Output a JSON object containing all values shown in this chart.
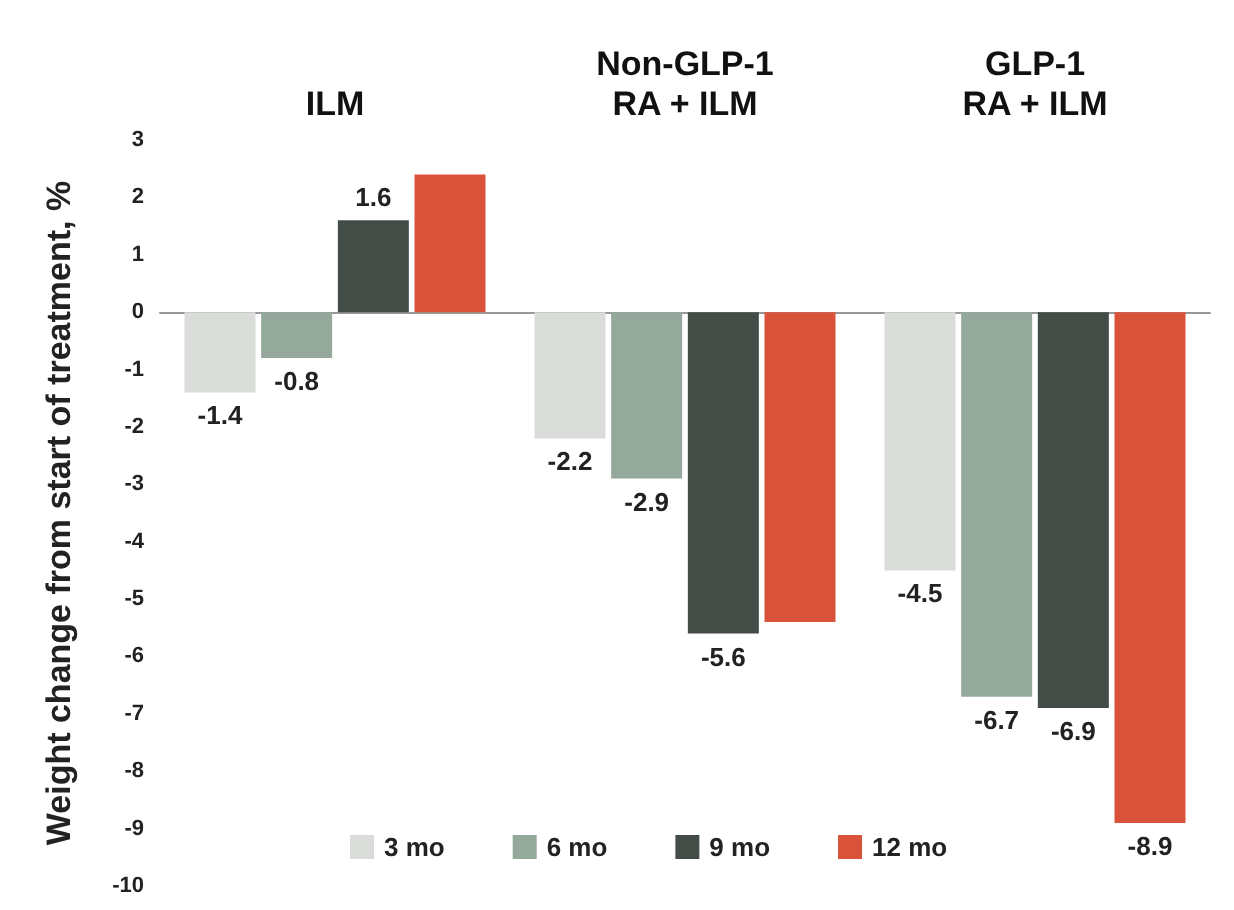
{
  "chart_data": {
    "type": "bar",
    "ylabel": "Weight change from start of treatment, %",
    "categories": [
      "ILM",
      "Non-GLP-1\nRA + ILM",
      "GLP-1\nRA + ILM"
    ],
    "series": [
      {
        "name": "3 mo",
        "color": "#d9dcd9",
        "values": [
          -1.4,
          -2.2,
          -4.5
        ],
        "value_labels": [
          "-1.4",
          "-2.2",
          "-4.5"
        ]
      },
      {
        "name": "6 mo",
        "color": "#95a89c",
        "values": [
          -0.8,
          -2.9,
          -6.7
        ],
        "value_labels": [
          "-0.8",
          "-2.9",
          "-6.7"
        ]
      },
      {
        "name": "9 mo",
        "color": "#434c47",
        "values": [
          1.6,
          -5.6,
          -6.9
        ],
        "value_labels": [
          "1.6",
          "-5.6",
          "-6.9"
        ]
      },
      {
        "name": "12 mo",
        "color": "#d9533b",
        "values": [
          2.4,
          -5.4,
          -8.9
        ],
        "value_labels": [
          null,
          null,
          "-8.9"
        ]
      }
    ],
    "ylim": [
      -10,
      3
    ],
    "yticks": [
      -10,
      -9,
      -8,
      -7,
      -6,
      -5,
      -4,
      -3,
      -2,
      -1,
      0,
      1,
      2,
      3
    ],
    "legend": "bottom"
  }
}
